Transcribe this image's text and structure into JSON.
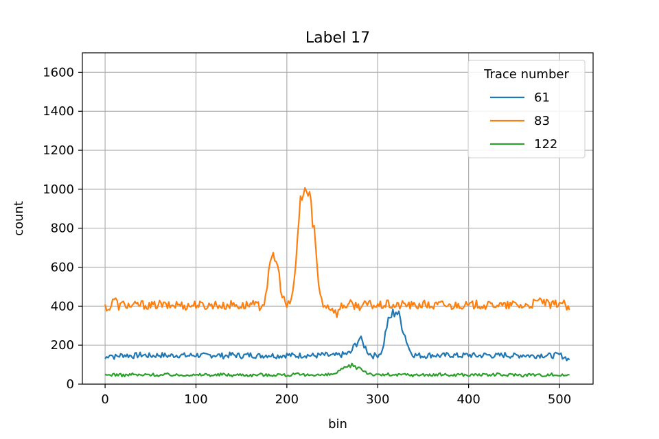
{
  "chart_data": {
    "type": "line",
    "title": "Label 17",
    "xlabel": "bin",
    "ylabel": "count",
    "xlim": [
      -25,
      537
    ],
    "ylim": [
      0,
      1700
    ],
    "xticks": [
      0,
      100,
      200,
      300,
      400,
      500
    ],
    "yticks": [
      0,
      200,
      400,
      600,
      800,
      1000,
      1200,
      1400,
      1600
    ],
    "grid": true,
    "legend": {
      "title": "Trace number",
      "position": "top-right"
    },
    "series": [
      {
        "name": "61",
        "color": "#1f77b4",
        "points": [
          [
            0,
            130
          ],
          [
            5,
            155
          ],
          [
            10,
            140
          ],
          [
            20,
            150
          ],
          [
            30,
            145
          ],
          [
            40,
            150
          ],
          [
            50,
            145
          ],
          [
            60,
            150
          ],
          [
            70,
            145
          ],
          [
            80,
            150
          ],
          [
            90,
            145
          ],
          [
            100,
            150
          ],
          [
            110,
            145
          ],
          [
            120,
            150
          ],
          [
            130,
            145
          ],
          [
            140,
            150
          ],
          [
            150,
            145
          ],
          [
            160,
            150
          ],
          [
            170,
            145
          ],
          [
            180,
            150
          ],
          [
            190,
            145
          ],
          [
            200,
            150
          ],
          [
            210,
            145
          ],
          [
            220,
            150
          ],
          [
            230,
            145
          ],
          [
            240,
            150
          ],
          [
            250,
            145
          ],
          [
            260,
            150
          ],
          [
            270,
            160
          ],
          [
            275,
            200
          ],
          [
            280,
            235
          ],
          [
            285,
            200
          ],
          [
            290,
            160
          ],
          [
            295,
            145
          ],
          [
            300,
            150
          ],
          [
            305,
            170
          ],
          [
            310,
            300
          ],
          [
            315,
            350
          ],
          [
            320,
            380
          ],
          [
            325,
            330
          ],
          [
            330,
            250
          ],
          [
            335,
            175
          ],
          [
            340,
            150
          ],
          [
            350,
            145
          ],
          [
            360,
            150
          ],
          [
            370,
            145
          ],
          [
            380,
            150
          ],
          [
            390,
            145
          ],
          [
            400,
            150
          ],
          [
            410,
            145
          ],
          [
            420,
            150
          ],
          [
            430,
            145
          ],
          [
            440,
            150
          ],
          [
            450,
            145
          ],
          [
            460,
            150
          ],
          [
            470,
            145
          ],
          [
            480,
            150
          ],
          [
            490,
            145
          ],
          [
            500,
            150
          ],
          [
            505,
            140
          ],
          [
            511,
            125
          ]
        ]
      },
      {
        "name": "83",
        "color": "#ff7f0e",
        "points": [
          [
            0,
            400
          ],
          [
            5,
            385
          ],
          [
            10,
            440
          ],
          [
            15,
            400
          ],
          [
            20,
            410
          ],
          [
            30,
            400
          ],
          [
            40,
            410
          ],
          [
            50,
            400
          ],
          [
            60,
            410
          ],
          [
            70,
            400
          ],
          [
            80,
            410
          ],
          [
            90,
            400
          ],
          [
            100,
            410
          ],
          [
            110,
            400
          ],
          [
            120,
            410
          ],
          [
            130,
            400
          ],
          [
            140,
            410
          ],
          [
            150,
            400
          ],
          [
            160,
            410
          ],
          [
            170,
            400
          ],
          [
            175,
            420
          ],
          [
            180,
            560
          ],
          [
            185,
            670
          ],
          [
            190,
            600
          ],
          [
            195,
            450
          ],
          [
            200,
            400
          ],
          [
            205,
            420
          ],
          [
            210,
            620
          ],
          [
            215,
            950
          ],
          [
            220,
            1000
          ],
          [
            225,
            960
          ],
          [
            230,
            800
          ],
          [
            235,
            500
          ],
          [
            240,
            410
          ],
          [
            245,
            400
          ],
          [
            250,
            390
          ],
          [
            255,
            360
          ],
          [
            260,
            400
          ],
          [
            270,
            410
          ],
          [
            280,
            400
          ],
          [
            290,
            410
          ],
          [
            300,
            400
          ],
          [
            310,
            410
          ],
          [
            320,
            400
          ],
          [
            330,
            410
          ],
          [
            340,
            400
          ],
          [
            350,
            410
          ],
          [
            360,
            400
          ],
          [
            370,
            410
          ],
          [
            380,
            400
          ],
          [
            390,
            410
          ],
          [
            400,
            400
          ],
          [
            410,
            410
          ],
          [
            420,
            400
          ],
          [
            430,
            410
          ],
          [
            440,
            400
          ],
          [
            450,
            410
          ],
          [
            460,
            400
          ],
          [
            470,
            410
          ],
          [
            480,
            430
          ],
          [
            490,
            400
          ],
          [
            500,
            420
          ],
          [
            505,
            410
          ],
          [
            511,
            380
          ]
        ]
      },
      {
        "name": "122",
        "color": "#2ca02c",
        "points": [
          [
            0,
            45
          ],
          [
            10,
            50
          ],
          [
            20,
            45
          ],
          [
            30,
            50
          ],
          [
            40,
            45
          ],
          [
            50,
            50
          ],
          [
            60,
            45
          ],
          [
            70,
            50
          ],
          [
            80,
            45
          ],
          [
            90,
            50
          ],
          [
            100,
            45
          ],
          [
            110,
            50
          ],
          [
            120,
            45
          ],
          [
            130,
            50
          ],
          [
            140,
            45
          ],
          [
            150,
            50
          ],
          [
            160,
            45
          ],
          [
            170,
            50
          ],
          [
            180,
            45
          ],
          [
            190,
            50
          ],
          [
            200,
            45
          ],
          [
            210,
            50
          ],
          [
            220,
            45
          ],
          [
            230,
            50
          ],
          [
            240,
            45
          ],
          [
            250,
            50
          ],
          [
            255,
            60
          ],
          [
            260,
            70
          ],
          [
            265,
            80
          ],
          [
            270,
            95
          ],
          [
            275,
            90
          ],
          [
            280,
            85
          ],
          [
            285,
            70
          ],
          [
            290,
            55
          ],
          [
            295,
            50
          ],
          [
            300,
            45
          ],
          [
            310,
            50
          ],
          [
            320,
            45
          ],
          [
            330,
            50
          ],
          [
            340,
            45
          ],
          [
            350,
            50
          ],
          [
            360,
            45
          ],
          [
            370,
            50
          ],
          [
            380,
            45
          ],
          [
            390,
            50
          ],
          [
            400,
            45
          ],
          [
            410,
            50
          ],
          [
            420,
            45
          ],
          [
            430,
            50
          ],
          [
            440,
            45
          ],
          [
            450,
            50
          ],
          [
            460,
            45
          ],
          [
            470,
            50
          ],
          [
            480,
            45
          ],
          [
            490,
            50
          ],
          [
            500,
            45
          ],
          [
            511,
            48
          ]
        ]
      }
    ]
  }
}
